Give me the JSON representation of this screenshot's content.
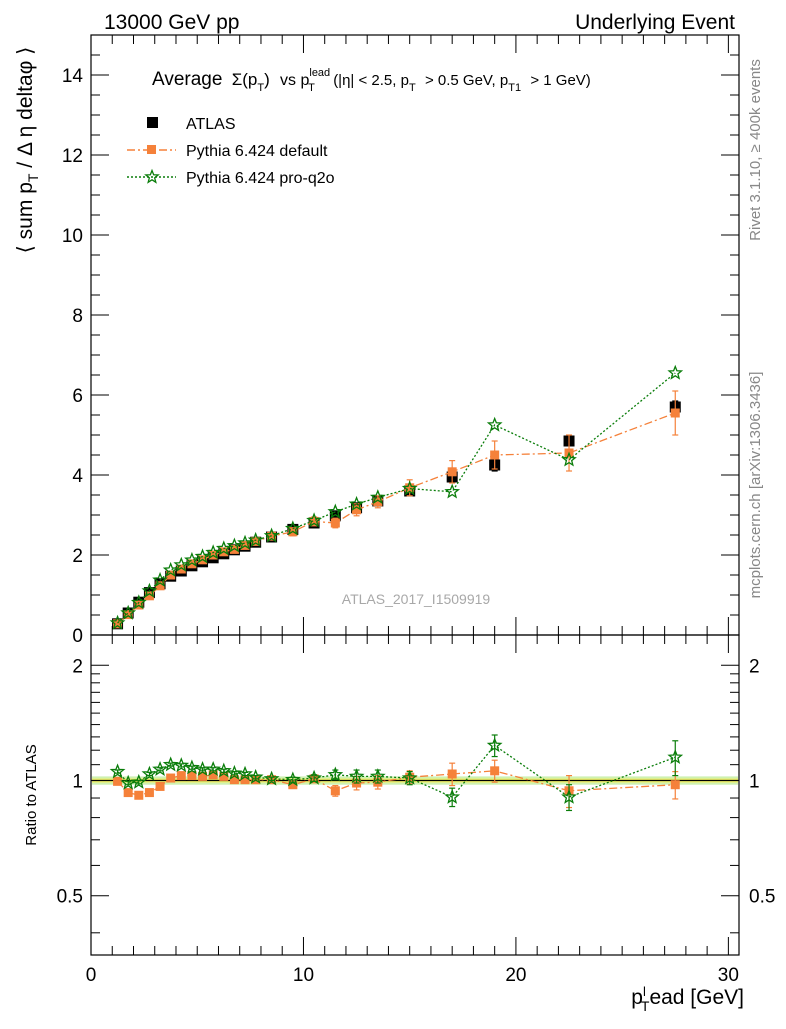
{
  "header": {
    "left": "13000 GeV pp",
    "right": "Underlying Event"
  },
  "side_labels": {
    "rivet": "Rivet 3.1.10, ≥ 400k events",
    "mcplots": "mcplots.cern.ch [arXiv:1306.3436]"
  },
  "watermark": "ATLAS_2017_I1509919",
  "colors": {
    "atlas": "#000000",
    "pythia_default": "#f5813a",
    "pythia_proq2o": "#0a7d0a",
    "band_inner": "#f1f06a",
    "band_outer": "#c9f0a8"
  },
  "chart_data": [
    {
      "type": "scatter",
      "title": "Average Σ(pT) vs pT^lead (|η| < 2.5, pT > 0.5 GeV, pT1 > 1 GeV)",
      "title_parts": {
        "word": "Average",
        "sigma": "Σ(p",
        "t_sub": "T",
        "close": ")",
        "vs": "vs p",
        "lead_sup": "lead",
        "lead_sub": "T",
        "cuts_a": "(|η| < 2.5, p",
        "cuts_a_sub": "T",
        "cuts_b": "> 0.5 GeV, p",
        "cuts_b_sub": "T1",
        "cuts_c": "> 1 GeV)"
      },
      "ylabel": "⟨ sum p",
      "ylabel_sub": "T",
      "ylabel_rest": " / Δ η deltaφ ⟩",
      "xlim": [
        0,
        30.5
      ],
      "ylim": [
        0,
        15
      ],
      "yticks": [
        "0",
        "2",
        "4",
        "6",
        "8",
        "10",
        "12",
        "14"
      ],
      "x": [
        1.25,
        1.75,
        2.25,
        2.75,
        3.25,
        3.75,
        4.25,
        4.75,
        5.25,
        5.75,
        6.25,
        6.75,
        7.25,
        7.75,
        8.5,
        9.5,
        10.5,
        11.5,
        12.5,
        13.5,
        15,
        17,
        19,
        22.5,
        27.5
      ],
      "series": [
        {
          "name": "ATLAS",
          "marker": "square",
          "values": [
            0.28,
            0.55,
            0.82,
            1.06,
            1.28,
            1.47,
            1.6,
            1.73,
            1.83,
            1.93,
            2.03,
            2.13,
            2.22,
            2.32,
            2.45,
            2.64,
            2.8,
            2.98,
            3.18,
            3.35,
            3.6,
            3.95,
            4.25,
            4.85,
            5.7
          ],
          "errors": [
            0.02,
            0.02,
            0.02,
            0.02,
            0.02,
            0.02,
            0.02,
            0.02,
            0.02,
            0.02,
            0.03,
            0.03,
            0.03,
            0.03,
            0.03,
            0.04,
            0.05,
            0.06,
            0.07,
            0.08,
            0.09,
            0.12,
            0.15,
            0.12,
            0.15
          ]
        },
        {
          "name": "Pythia 6.424 default",
          "marker": "square-line",
          "values": [
            0.28,
            0.51,
            0.75,
            0.98,
            1.23,
            1.5,
            1.65,
            1.78,
            1.88,
            2.0,
            2.08,
            2.14,
            2.24,
            2.34,
            2.47,
            2.58,
            2.84,
            2.8,
            3.13,
            3.33,
            3.68,
            4.08,
            4.5,
            4.55,
            5.55
          ],
          "errors": [
            0.02,
            0.03,
            0.03,
            0.03,
            0.03,
            0.04,
            0.04,
            0.05,
            0.05,
            0.05,
            0.06,
            0.06,
            0.07,
            0.08,
            0.08,
            0.1,
            0.11,
            0.12,
            0.15,
            0.15,
            0.2,
            0.28,
            0.35,
            0.45,
            0.55
          ]
        },
        {
          "name": "Pythia 6.424 pro-q2o",
          "marker": "star",
          "values": [
            0.3,
            0.55,
            0.81,
            1.1,
            1.37,
            1.62,
            1.75,
            1.87,
            1.96,
            2.06,
            2.16,
            2.23,
            2.3,
            2.37,
            2.48,
            2.66,
            2.86,
            3.08,
            3.27,
            3.44,
            3.66,
            3.58,
            5.25,
            4.38,
            6.55
          ]
        }
      ]
    },
    {
      "type": "scatter",
      "ylabel": "Ratio to ATLAS",
      "xlabel": "p",
      "xlabel_sub": "T",
      "xlabel_sup": "l",
      "xlabel_rest": "ead [GeV]",
      "xlim": [
        0,
        30.5
      ],
      "ylim": [
        0.35,
        2.4
      ],
      "log_y": true,
      "yticks": [
        "0.5",
        "1",
        "2"
      ],
      "xticks": [
        "0",
        "10",
        "20",
        "30"
      ],
      "x": [
        1.25,
        1.75,
        2.25,
        2.75,
        3.25,
        3.75,
        4.25,
        4.75,
        5.25,
        5.75,
        6.25,
        6.75,
        7.25,
        7.75,
        8.5,
        9.5,
        10.5,
        11.5,
        12.5,
        13.5,
        15,
        17,
        19,
        22.5,
        27.5
      ],
      "series": [
        {
          "name": "Pythia 6.424 default",
          "values": [
            0.995,
            0.93,
            0.915,
            0.93,
            0.965,
            1.015,
            1.03,
            1.03,
            1.025,
            1.035,
            1.025,
            1.005,
            1.005,
            1.005,
            1.005,
            0.975,
            1.01,
            0.94,
            0.985,
            0.99,
            1.02,
            1.04,
            1.06,
            0.94,
            0.975
          ],
          "errors": [
            0.01,
            0.01,
            0.01,
            0.01,
            0.01,
            0.01,
            0.01,
            0.01,
            0.01,
            0.01,
            0.01,
            0.01,
            0.01,
            0.01,
            0.01,
            0.015,
            0.02,
            0.03,
            0.04,
            0.04,
            0.04,
            0.07,
            0.07,
            0.09,
            0.08
          ]
        },
        {
          "name": "Pythia 6.424 pro-q2o",
          "values": [
            1.055,
            0.985,
            0.99,
            1.04,
            1.07,
            1.1,
            1.095,
            1.08,
            1.07,
            1.07,
            1.06,
            1.045,
            1.04,
            1.02,
            1.01,
            1.005,
            1.015,
            1.035,
            1.025,
            1.025,
            1.015,
            0.905,
            1.235,
            0.905,
            1.15
          ],
          "errors": [
            0.01,
            0.01,
            0.01,
            0.01,
            0.01,
            0.01,
            0.01,
            0.01,
            0.01,
            0.01,
            0.01,
            0.01,
            0.01,
            0.01,
            0.01,
            0.015,
            0.02,
            0.03,
            0.04,
            0.04,
            0.04,
            0.05,
            0.08,
            0.07,
            0.12
          ]
        }
      ]
    }
  ]
}
